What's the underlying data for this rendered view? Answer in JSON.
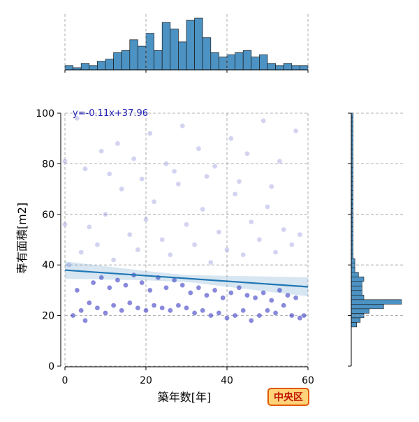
{
  "chart_data": {
    "type": "scatter",
    "title": "",
    "xlabel": "築年数[年]",
    "ylabel": "専有面積[m2]",
    "xlim": [
      0,
      60
    ],
    "ylim": [
      0,
      100
    ],
    "x_ticks": [
      0,
      20,
      40,
      60
    ],
    "y_ticks": [
      0,
      20,
      40,
      60,
      80,
      100
    ],
    "grid": true,
    "regression": {
      "equation": "y=-0.11x+37.96",
      "slope": -0.11,
      "intercept": 37.96
    },
    "top_histogram": {
      "bin_width": 2,
      "bins": [
        {
          "x": 0,
          "count": 2
        },
        {
          "x": 2,
          "count": 1
        },
        {
          "x": 4,
          "count": 3
        },
        {
          "x": 6,
          "count": 2
        },
        {
          "x": 8,
          "count": 4
        },
        {
          "x": 10,
          "count": 5
        },
        {
          "x": 12,
          "count": 8
        },
        {
          "x": 14,
          "count": 9
        },
        {
          "x": 16,
          "count": 14
        },
        {
          "x": 18,
          "count": 11
        },
        {
          "x": 20,
          "count": 17
        },
        {
          "x": 22,
          "count": 9
        },
        {
          "x": 24,
          "count": 22
        },
        {
          "x": 26,
          "count": 19
        },
        {
          "x": 28,
          "count": 13
        },
        {
          "x": 30,
          "count": 23
        },
        {
          "x": 32,
          "count": 24
        },
        {
          "x": 34,
          "count": 15
        },
        {
          "x": 36,
          "count": 8
        },
        {
          "x": 38,
          "count": 6
        },
        {
          "x": 40,
          "count": 7
        },
        {
          "x": 42,
          "count": 8
        },
        {
          "x": 44,
          "count": 9
        },
        {
          "x": 46,
          "count": 6
        },
        {
          "x": 48,
          "count": 7
        },
        {
          "x": 50,
          "count": 3
        },
        {
          "x": 52,
          "count": 2
        },
        {
          "x": 54,
          "count": 3
        },
        {
          "x": 56,
          "count": 2
        },
        {
          "x": 58,
          "count": 2
        }
      ]
    },
    "right_histogram": {
      "bin_width": 1.8,
      "bins": [
        {
          "y": 15.5,
          "count": 3
        },
        {
          "y": 17.3,
          "count": 5
        },
        {
          "y": 19.1,
          "count": 7
        },
        {
          "y": 20.9,
          "count": 10
        },
        {
          "y": 22.7,
          "count": 18
        },
        {
          "y": 24.5,
          "count": 28
        },
        {
          "y": 26.3,
          "count": 7
        },
        {
          "y": 28.1,
          "count": 6
        },
        {
          "y": 29.9,
          "count": 6
        },
        {
          "y": 31.7,
          "count": 6
        },
        {
          "y": 33.5,
          "count": 7
        },
        {
          "y": 35.3,
          "count": 4
        },
        {
          "y": 37.1,
          "count": 2
        },
        {
          "y": 38.9,
          "count": 2
        },
        {
          "y": 40.7,
          "count": 2
        },
        {
          "y": 42.5,
          "count": 1
        },
        {
          "y": 44.3,
          "count": 1
        },
        {
          "y": 46.1,
          "count": 1
        },
        {
          "y": 47.9,
          "count": 1
        },
        {
          "y": 49.7,
          "count": 1
        },
        {
          "y": 51.5,
          "count": 1
        },
        {
          "y": 53.3,
          "count": 1
        },
        {
          "y": 55.1,
          "count": 1
        },
        {
          "y": 56.9,
          "count": 1
        },
        {
          "y": 58.7,
          "count": 1
        },
        {
          "y": 60.5,
          "count": 1
        },
        {
          "y": 62.3,
          "count": 1
        },
        {
          "y": 64.1,
          "count": 1
        },
        {
          "y": 65.9,
          "count": 1
        },
        {
          "y": 67.7,
          "count": 1
        },
        {
          "y": 69.5,
          "count": 1
        },
        {
          "y": 71.3,
          "count": 1
        },
        {
          "y": 73.1,
          "count": 1
        },
        {
          "y": 74.9,
          "count": 1
        },
        {
          "y": 76.7,
          "count": 1
        },
        {
          "y": 78.5,
          "count": 1
        },
        {
          "y": 80.3,
          "count": 1
        },
        {
          "y": 82.1,
          "count": 1
        },
        {
          "y": 83.9,
          "count": 1
        },
        {
          "y": 85.7,
          "count": 1
        },
        {
          "y": 87.5,
          "count": 1
        },
        {
          "y": 89.3,
          "count": 1
        },
        {
          "y": 91.1,
          "count": 1
        },
        {
          "y": 92.9,
          "count": 1
        },
        {
          "y": 94.7,
          "count": 1
        },
        {
          "y": 96.5,
          "count": 1
        },
        {
          "y": 98.3,
          "count": 1
        }
      ]
    },
    "points": [
      {
        "x": 2,
        "y": 20
      },
      {
        "x": 4,
        "y": 22
      },
      {
        "x": 5,
        "y": 18
      },
      {
        "x": 6,
        "y": 25
      },
      {
        "x": 8,
        "y": 23
      },
      {
        "x": 10,
        "y": 21
      },
      {
        "x": 12,
        "y": 24
      },
      {
        "x": 14,
        "y": 22
      },
      {
        "x": 16,
        "y": 25
      },
      {
        "x": 18,
        "y": 23
      },
      {
        "x": 20,
        "y": 22
      },
      {
        "x": 22,
        "y": 24
      },
      {
        "x": 24,
        "y": 23
      },
      {
        "x": 26,
        "y": 22
      },
      {
        "x": 28,
        "y": 24
      },
      {
        "x": 30,
        "y": 23
      },
      {
        "x": 32,
        "y": 21
      },
      {
        "x": 34,
        "y": 22
      },
      {
        "x": 36,
        "y": 20
      },
      {
        "x": 38,
        "y": 21
      },
      {
        "x": 40,
        "y": 19
      },
      {
        "x": 42,
        "y": 20
      },
      {
        "x": 44,
        "y": 22
      },
      {
        "x": 46,
        "y": 18
      },
      {
        "x": 48,
        "y": 20
      },
      {
        "x": 50,
        "y": 22
      },
      {
        "x": 52,
        "y": 21
      },
      {
        "x": 54,
        "y": 24
      },
      {
        "x": 56,
        "y": 20
      },
      {
        "x": 58,
        "y": 19
      },
      {
        "x": 3,
        "y": 30
      },
      {
        "x": 7,
        "y": 33
      },
      {
        "x": 9,
        "y": 35
      },
      {
        "x": 11,
        "y": 31
      },
      {
        "x": 13,
        "y": 34
      },
      {
        "x": 15,
        "y": 32
      },
      {
        "x": 17,
        "y": 36
      },
      {
        "x": 19,
        "y": 33
      },
      {
        "x": 21,
        "y": 30
      },
      {
        "x": 23,
        "y": 35
      },
      {
        "x": 25,
        "y": 31
      },
      {
        "x": 27,
        "y": 34
      },
      {
        "x": 29,
        "y": 32
      },
      {
        "x": 31,
        "y": 29
      },
      {
        "x": 33,
        "y": 31
      },
      {
        "x": 35,
        "y": 28
      },
      {
        "x": 37,
        "y": 30
      },
      {
        "x": 39,
        "y": 27
      },
      {
        "x": 41,
        "y": 29
      },
      {
        "x": 43,
        "y": 31
      },
      {
        "x": 45,
        "y": 28
      },
      {
        "x": 47,
        "y": 27
      },
      {
        "x": 49,
        "y": 29
      },
      {
        "x": 51,
        "y": 26
      },
      {
        "x": 53,
        "y": 30
      },
      {
        "x": 55,
        "y": 28
      },
      {
        "x": 57,
        "y": 27
      },
      {
        "x": 1,
        "y": 40
      },
      {
        "x": 4,
        "y": 45
      },
      {
        "x": 6,
        "y": 55
      },
      {
        "x": 8,
        "y": 48
      },
      {
        "x": 10,
        "y": 60
      },
      {
        "x": 12,
        "y": 42
      },
      {
        "x": 14,
        "y": 70
      },
      {
        "x": 16,
        "y": 52
      },
      {
        "x": 18,
        "y": 46
      },
      {
        "x": 20,
        "y": 58
      },
      {
        "x": 22,
        "y": 65
      },
      {
        "x": 24,
        "y": 50
      },
      {
        "x": 26,
        "y": 44
      },
      {
        "x": 28,
        "y": 72
      },
      {
        "x": 30,
        "y": 56
      },
      {
        "x": 32,
        "y": 48
      },
      {
        "x": 34,
        "y": 62
      },
      {
        "x": 36,
        "y": 41
      },
      {
        "x": 38,
        "y": 53
      },
      {
        "x": 40,
        "y": 46
      },
      {
        "x": 42,
        "y": 68
      },
      {
        "x": 44,
        "y": 44
      },
      {
        "x": 46,
        "y": 57
      },
      {
        "x": 48,
        "y": 50
      },
      {
        "x": 50,
        "y": 63
      },
      {
        "x": 52,
        "y": 45
      },
      {
        "x": 54,
        "y": 54
      },
      {
        "x": 56,
        "y": 48
      },
      {
        "x": 58,
        "y": 52
      },
      {
        "x": 5,
        "y": 78
      },
      {
        "x": 9,
        "y": 85
      },
      {
        "x": 13,
        "y": 88
      },
      {
        "x": 17,
        "y": 82
      },
      {
        "x": 21,
        "y": 92
      },
      {
        "x": 25,
        "y": 80
      },
      {
        "x": 29,
        "y": 95
      },
      {
        "x": 33,
        "y": 86
      },
      {
        "x": 37,
        "y": 79
      },
      {
        "x": 41,
        "y": 90
      },
      {
        "x": 45,
        "y": 84
      },
      {
        "x": 49,
        "y": 97
      },
      {
        "x": 53,
        "y": 81
      },
      {
        "x": 57,
        "y": 93
      },
      {
        "x": 0,
        "y": 81
      },
      {
        "x": 0,
        "y": 56
      },
      {
        "x": 3,
        "y": 98
      },
      {
        "x": 11,
        "y": 76
      },
      {
        "x": 19,
        "y": 74
      },
      {
        "x": 27,
        "y": 77
      },
      {
        "x": 35,
        "y": 75
      },
      {
        "x": 43,
        "y": 73
      },
      {
        "x": 51,
        "y": 71
      },
      {
        "x": 59,
        "y": 20
      }
    ]
  },
  "badge": {
    "label": "中央区"
  }
}
